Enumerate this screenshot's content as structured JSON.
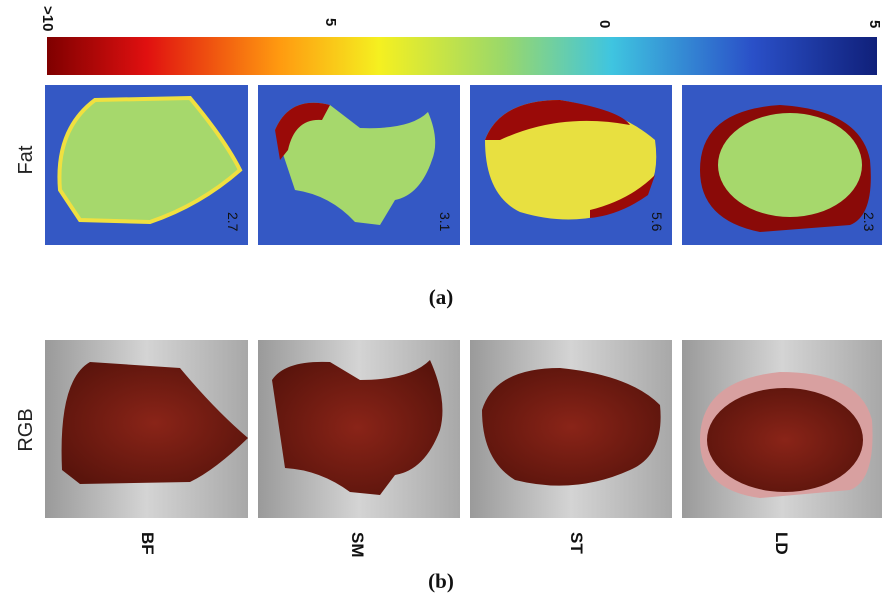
{
  "colorbar": {
    "tick_labels": [
      ">10",
      "5",
      "0",
      "5"
    ]
  },
  "panel_a": {
    "row_label": "Fat",
    "panel_values": [
      "2.7",
      "3.1",
      "5.6",
      "2.3"
    ],
    "caption": "(a)"
  },
  "panel_b": {
    "row_label": "RGB",
    "sample_labels": [
      "BF",
      "SM",
      "ST",
      "LD"
    ],
    "caption": "(b)"
  }
}
